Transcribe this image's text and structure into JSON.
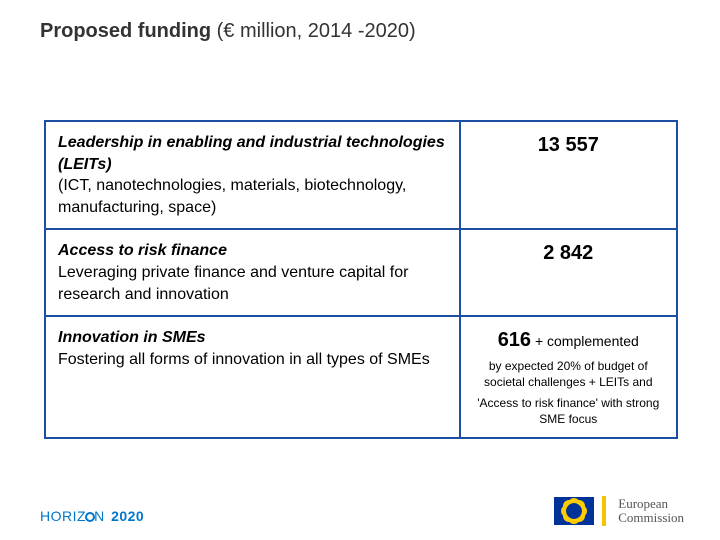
{
  "title": {
    "bold": "Proposed funding",
    "rest": " (€ million, 2014 -2020)"
  },
  "table": {
    "border_color": "#1c4fa1",
    "rows": [
      {
        "title": "Leadership in enabling and industrial technologies (LEITs)",
        "desc": "(ICT, nanotechnologies, materials, biotechnology, manufacturing, space)",
        "value": "13 557"
      },
      {
        "title": "Access to risk finance",
        "desc": "Leveraging private finance and venture capital for research and innovation",
        "value": "2 842"
      },
      {
        "title": "Innovation in SMEs",
        "desc": "Fostering all forms of innovation in all types of SMEs",
        "value": "616",
        "compl": " + complemented",
        "note1": "by expected 20% of budget of societal challenges + LEITs and",
        "note2": "'Access to risk finance' with strong SME focus"
      }
    ]
  },
  "footer": {
    "horizon_word": "HORIZ",
    "horizon_suffix": "N",
    "horizon_year": "2020",
    "ec_line1": "European",
    "ec_line2": "Commission"
  },
  "colors": {
    "title_text": "#333333",
    "horizon_blue": "#0077c8",
    "ec_yellow": "#f9c200",
    "flag_blue": "#003399",
    "flag_star": "#ffcc00"
  }
}
